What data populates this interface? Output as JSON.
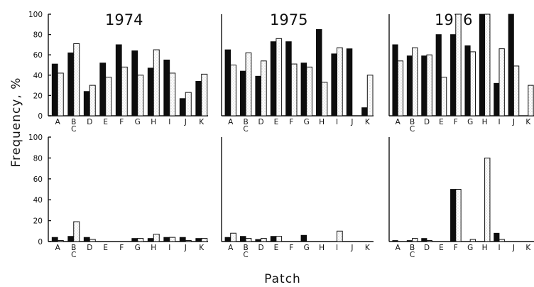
{
  "chart_data": {
    "type": "bar",
    "ylabel": "Frequency, %",
    "xlabel": "Patch",
    "ylim": [
      0,
      100
    ],
    "yticks": [
      "0",
      "20",
      "40",
      "60",
      "80",
      "100"
    ],
    "categories": [
      "A",
      "B\nC",
      "D",
      "E",
      "F",
      "G",
      "H",
      "I",
      "J",
      "K"
    ],
    "panels": [
      {
        "title": "1974",
        "row": "top",
        "dark": [
          51,
          62,
          24,
          52,
          70,
          64,
          47,
          55,
          17,
          34
        ],
        "light": [
          42,
          71,
          30,
          38,
          48,
          40,
          65,
          42,
          23,
          41
        ]
      },
      {
        "title": "1975",
        "row": "top",
        "dark": [
          65,
          44,
          39,
          73,
          73,
          52,
          85,
          61,
          66,
          8
        ],
        "light": [
          50,
          62,
          54,
          76,
          51,
          48,
          33,
          67,
          null,
          40
        ]
      },
      {
        "title": "1976",
        "row": "top",
        "dark": [
          70,
          59,
          59,
          80,
          80,
          69,
          100,
          32,
          100,
          null
        ],
        "light": [
          54,
          67,
          60,
          38,
          100,
          63,
          100,
          66,
          49,
          30
        ]
      },
      {
        "title": "",
        "row": "bottom",
        "dark": [
          4,
          5,
          4,
          0,
          0,
          3,
          3,
          4,
          4,
          3
        ],
        "light": [
          1,
          19,
          2,
          0,
          0,
          3,
          7,
          4,
          1,
          3
        ]
      },
      {
        "title": "",
        "row": "bottom",
        "dark": [
          4,
          5,
          2,
          5,
          0,
          6,
          0,
          0,
          0,
          0
        ],
        "light": [
          8,
          3,
          3,
          5,
          0,
          0,
          0,
          10,
          0,
          0
        ]
      },
      {
        "title": "",
        "row": "bottom",
        "dark": [
          1,
          1,
          3,
          0,
          50,
          0,
          0,
          8,
          0,
          0
        ],
        "light": [
          0,
          3,
          1,
          0,
          50,
          2,
          80,
          2,
          0,
          0
        ]
      }
    ]
  }
}
